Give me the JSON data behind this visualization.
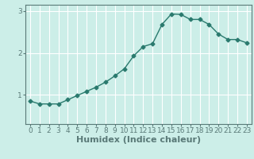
{
  "x": [
    0,
    1,
    2,
    3,
    4,
    5,
    6,
    7,
    8,
    9,
    10,
    11,
    12,
    13,
    14,
    15,
    16,
    17,
    18,
    19,
    20,
    21,
    22,
    23
  ],
  "y": [
    0.85,
    0.78,
    0.78,
    0.78,
    0.88,
    0.98,
    1.08,
    1.18,
    1.3,
    1.45,
    1.62,
    1.93,
    2.15,
    2.22,
    2.68,
    2.93,
    2.92,
    2.8,
    2.8,
    2.68,
    2.45,
    2.32,
    2.32,
    2.24
  ],
  "line_color": "#2a7a6e",
  "marker": "D",
  "marker_size": 2.5,
  "bg_color": "#cceee8",
  "grid_color": "#ffffff",
  "axis_color": "#5a7a78",
  "xlabel": "Humidex (Indice chaleur)",
  "xlabel_fontsize": 8,
  "yticks": [
    1,
    2,
    3
  ],
  "ylim": [
    0.3,
    3.15
  ],
  "xlim": [
    -0.5,
    23.5
  ],
  "xtick_labels": [
    "0",
    "1",
    "2",
    "3",
    "4",
    "5",
    "6",
    "7",
    "8",
    "9",
    "10",
    "11",
    "12",
    "13",
    "14",
    "15",
    "16",
    "17",
    "18",
    "19",
    "20",
    "21",
    "22",
    "23"
  ],
  "tick_fontsize": 6.5
}
